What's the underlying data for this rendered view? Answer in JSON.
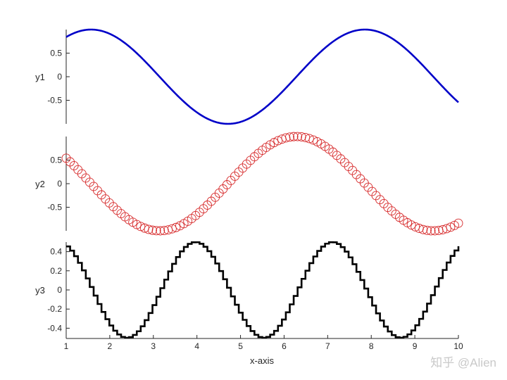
{
  "chart_data": {
    "type": "stacked_line",
    "xlabel": "x-axis",
    "xlim": [
      1,
      10
    ],
    "xticks": [
      "1",
      "2",
      "3",
      "4",
      "5",
      "6",
      "7",
      "8",
      "9",
      "10"
    ],
    "panels": [
      {
        "ylabel": "y1",
        "ylim": [
          -1,
          1
        ],
        "yticks": [
          "0.5",
          "0",
          "-0.5"
        ],
        "ytick_values": [
          0.5,
          0,
          -0.5
        ],
        "style": "line",
        "color": "#0000c8",
        "function": "sin(x)",
        "x": [
          1.0,
          1.5,
          2.0,
          2.5,
          3.0,
          3.5,
          4.0,
          4.5,
          5.0,
          5.5,
          6.0,
          6.5,
          7.0,
          7.5,
          8.0,
          8.5,
          9.0,
          9.5,
          10.0
        ],
        "y": [
          0.84,
          1.0,
          0.91,
          0.6,
          0.14,
          -0.35,
          -0.76,
          -0.98,
          -0.96,
          -0.71,
          -0.28,
          0.22,
          0.66,
          0.94,
          0.99,
          0.8,
          0.41,
          -0.08,
          -0.54
        ]
      },
      {
        "ylabel": "y2",
        "ylim": [
          -1,
          1
        ],
        "yticks": [
          "0.5",
          "0",
          "-0.5"
        ],
        "ytick_values": [
          0.5,
          0,
          -0.5
        ],
        "style": "markers",
        "marker": "open-circle",
        "color": "#d62728",
        "function": "cos(x)",
        "x": [
          1.0,
          1.5,
          2.0,
          2.5,
          3.0,
          3.5,
          4.0,
          4.5,
          5.0,
          5.5,
          6.0,
          6.5,
          7.0,
          7.5,
          8.0,
          8.5,
          9.0,
          9.5,
          10.0
        ],
        "y": [
          0.54,
          0.07,
          -0.42,
          -0.8,
          -0.99,
          -0.94,
          -0.65,
          -0.21,
          0.28,
          0.71,
          0.96,
          0.98,
          0.75,
          0.35,
          -0.15,
          -0.6,
          -0.91,
          -1.0,
          -0.84
        ]
      },
      {
        "ylabel": "y3",
        "ylim": [
          -0.5,
          0.5
        ],
        "yticks": [
          "0.4",
          "0.2",
          "0",
          "-0.2",
          "-0.4"
        ],
        "ytick_values": [
          0.4,
          0.2,
          0,
          -0.2,
          -0.4
        ],
        "style": "stairs",
        "color": "#000000",
        "function": "sin(2x)/2",
        "x": [
          1.0,
          1.5,
          2.0,
          2.5,
          3.0,
          3.5,
          4.0,
          4.5,
          5.0,
          5.5,
          6.0,
          6.5,
          7.0,
          7.5,
          8.0,
          8.5,
          9.0,
          9.5,
          10.0
        ],
        "y": [
          0.45,
          0.07,
          -0.38,
          -0.48,
          -0.14,
          0.33,
          0.49,
          0.21,
          -0.27,
          -0.5,
          -0.27,
          0.21,
          0.5,
          0.33,
          -0.14,
          -0.48,
          -0.38,
          0.07,
          0.46
        ]
      }
    ]
  },
  "watermark": "知乎 @Alien"
}
